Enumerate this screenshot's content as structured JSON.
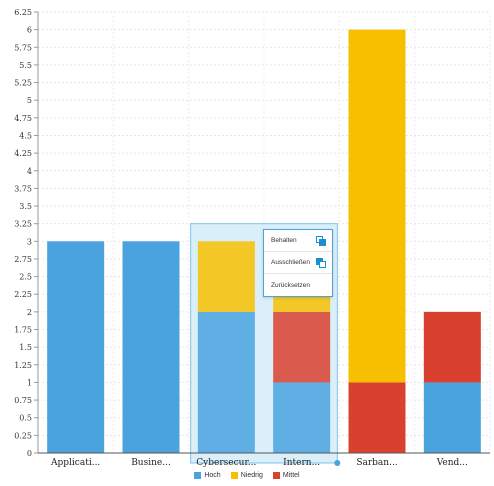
{
  "chart_data": {
    "type": "bar",
    "stacked": true,
    "categories": [
      "Applicati...",
      "Busine...",
      "Cybersecur...",
      "Intern...",
      "Sarban...",
      "Vend..."
    ],
    "series": [
      {
        "name": "Hoch",
        "color": "#4aa3df",
        "values": [
          3,
          3,
          2,
          1,
          0,
          1
        ]
      },
      {
        "name": "Mittel",
        "color": "#d9402e",
        "values": [
          0,
          0,
          0,
          1,
          1,
          1
        ]
      },
      {
        "name": "Niedrig",
        "color": "#f6bf00",
        "values": [
          0,
          0,
          1,
          1,
          5,
          0
        ]
      }
    ],
    "ylim": [
      0,
      6.25
    ],
    "yticks": [
      "0",
      "0.25",
      "0.5",
      "0.75",
      "1",
      "1.25",
      "1.5",
      "1.75",
      "2",
      "2.25",
      "2.5",
      "2.75",
      "3",
      "3.25",
      "3.5",
      "3.75",
      "4",
      "4.25",
      "4.5",
      "4.75",
      "5",
      "5.25",
      "5.5",
      "5.75",
      "6",
      "6.25"
    ],
    "ytick_values": [
      0,
      0.25,
      0.5,
      0.75,
      1,
      1.25,
      1.5,
      1.75,
      2,
      2.25,
      2.5,
      2.75,
      3,
      3.25,
      3.5,
      3.75,
      4,
      4.25,
      4.5,
      4.75,
      5,
      5.25,
      5.5,
      5.75,
      6,
      6.25
    ],
    "grid": true,
    "legend": [
      {
        "label": "Hoch",
        "color": "#4aa3df"
      },
      {
        "label": "Niedrig",
        "color": "#f6bf00"
      },
      {
        "label": "Mittel",
        "color": "#d9402e"
      }
    ],
    "legend_position": "bottom",
    "selection": {
      "from_category": 2,
      "to_category": 3,
      "ymax": 3.25
    }
  },
  "context_menu": {
    "items": [
      {
        "label": "Behalten",
        "icon": "keep-icon"
      },
      {
        "label": "Ausschließen",
        "icon": "exclude-icon"
      },
      {
        "label": "Zurücksetzen",
        "icon": ""
      }
    ]
  }
}
